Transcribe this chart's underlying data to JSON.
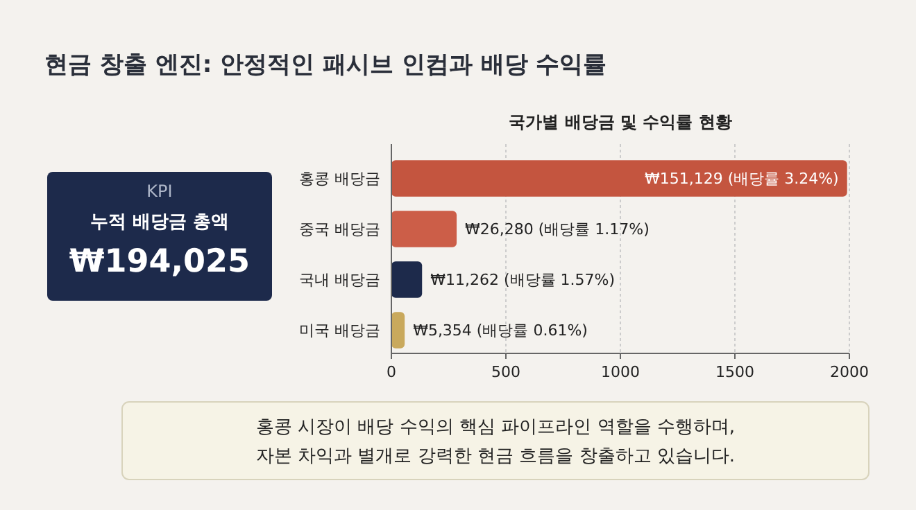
{
  "chart_data": {
    "type": "bar",
    "orientation": "horizontal",
    "title": "현금 창출 엔진: 안정적인 패시브 인컴과 배당 수익률",
    "subtitle": "국가별 배당금 및 수익률 현황",
    "categories": [
      "홍콩 배당금",
      "중국 배당금",
      "국내 배당금",
      "미국 배당금"
    ],
    "values": [
      1990,
      285,
      134,
      58
    ],
    "colors": [
      "#c4553f",
      "#cc5e48",
      "#1d2a4b",
      "#c9a95c"
    ],
    "xlim": [
      0,
      2000
    ],
    "xticks": [
      0,
      500,
      1000,
      1500,
      2000
    ],
    "grid": "x",
    "annotations": [
      {
        "text": "₩151,129 (배당률 3.24%)",
        "x": 1990,
        "y": "홍콩 배당금"
      },
      {
        "text": "₩26,280 (배당률 1.17%)",
        "x": 285,
        "y": "중국 배당금"
      },
      {
        "text": "₩11,262 (배당률 1.57%)",
        "x": 134,
        "y": "국내 배당금"
      },
      {
        "text": "₩5,354 (배당률 0.61%)",
        "x": 58,
        "y": "미국 배당금"
      },
      "KPI",
      "누적 배당금 총액",
      "₩194,025",
      "홍콩 시장이 배당 수익의 핵심 파이프라인 역할을 수행하며,\n자본 차익과 별개로 강력한 현금 흐름을 창출하고 있습니다."
    ]
  }
}
